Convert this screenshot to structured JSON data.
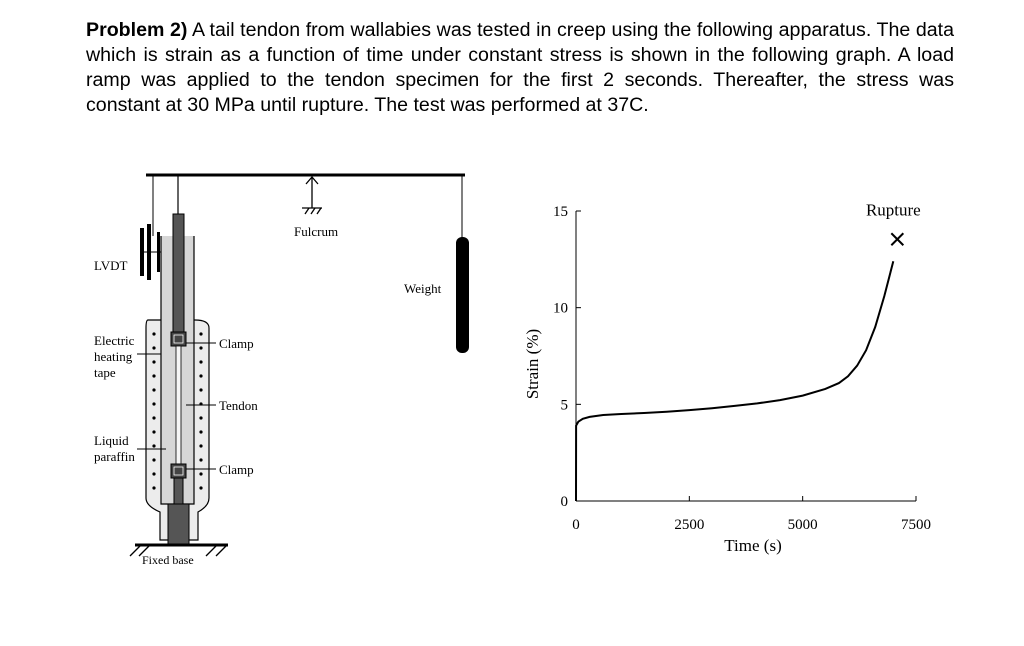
{
  "problem": {
    "label": "Problem 2)",
    "text": " A tail tendon from wallabies was tested in creep using the following apparatus. The data which is strain as a function of time under constant stress is shown in the following graph. A load ramp was applied to the tendon specimen for the first 2 seconds. Thereafter, the stress was constant at 30 MPa until rupture. The test was performed at 37C."
  },
  "apparatus": {
    "labels": {
      "lvdt": "LVDT",
      "fulcrum": "Fulcrum",
      "weight": "Weight",
      "electric_line1": "Electric",
      "electric_line2": "heating",
      "electric_line3": "tape",
      "clamp_top": "Clamp",
      "tendon": "Tendon",
      "liquid_line1": "Liquid",
      "liquid_line2": "paraffin",
      "clamp_bottom": "Clamp",
      "fixed_base": "Fixed base"
    }
  },
  "chart_data": {
    "type": "line",
    "xlabel": "Time (s)",
    "ylabel": "Strain (%)",
    "xlim": [
      0,
      7500
    ],
    "ylim": [
      0,
      15
    ],
    "xticks": [
      0,
      2500,
      5000,
      7500
    ],
    "yticks": [
      0,
      5,
      10,
      15
    ],
    "grid": false,
    "annotation": "Rupture",
    "rupture_point": {
      "x": 7000,
      "y": 12.4
    },
    "series": [
      {
        "x": [
          0,
          2,
          50,
          150,
          300,
          600,
          1000,
          1500,
          2000,
          2500,
          3000,
          3500,
          4000,
          4500,
          5000,
          5500,
          5800,
          6000,
          6200,
          6400,
          6600,
          6800,
          6900,
          7000
        ],
        "y": [
          0,
          3.9,
          4.1,
          4.25,
          4.35,
          4.45,
          4.5,
          4.55,
          4.62,
          4.7,
          4.8,
          4.92,
          5.05,
          5.22,
          5.45,
          5.8,
          6.1,
          6.45,
          7.0,
          7.8,
          9.0,
          10.6,
          11.5,
          12.4
        ]
      }
    ]
  }
}
